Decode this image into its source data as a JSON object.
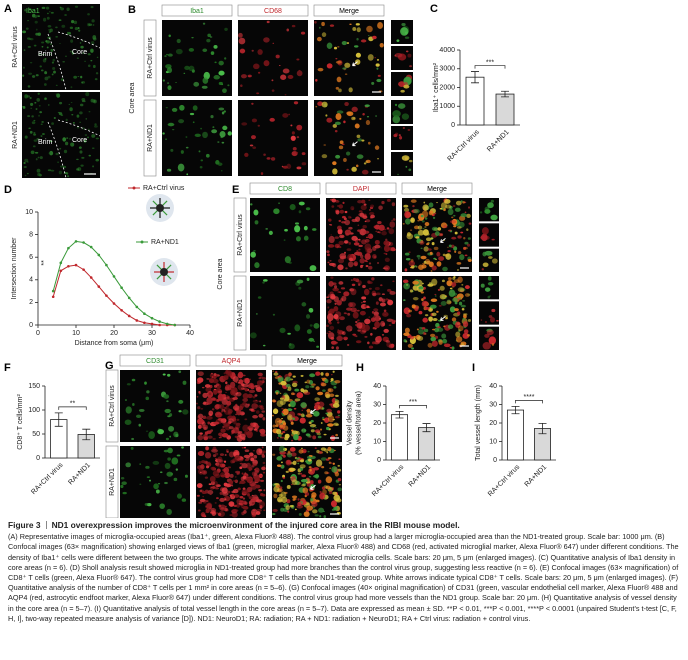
{
  "figure": {
    "panel_a": {
      "letter": "A",
      "stain": "Iba1",
      "rows": [
        "RA+Ctrl virus",
        "RA+ND1"
      ],
      "regions": [
        "Brim",
        "Core"
      ]
    },
    "panel_b": {
      "letter": "B",
      "columns": [
        "Iba1",
        "CD68",
        "Merge"
      ],
      "area": "Core area",
      "rows": [
        "RA+Ctrl virus",
        "RA+ND1"
      ]
    },
    "panel_e": {
      "letter": "E",
      "columns": [
        "CD8",
        "DAPI",
        "Merge"
      ],
      "area": "Core area",
      "rows": [
        "RA+Ctrl virus",
        "RA+ND1"
      ]
    },
    "panel_g": {
      "letter": "G",
      "columns": [
        "CD31",
        "AQP4",
        "Merge"
      ],
      "rows": [
        "RA+Ctrl virus",
        "RA+ND1"
      ]
    }
  },
  "chart_data": [
    {
      "type": "bar",
      "letter": "C",
      "categories": [
        "RA+Ctrl virus",
        "RA+ND1"
      ],
      "values": [
        2550,
        1650
      ],
      "errors": [
        300,
        150
      ],
      "colors": [
        "#ffffff",
        "#d9d9d9"
      ],
      "ylabel": [
        "Iba1⁺ cells/mm²"
      ],
      "ylim": [
        0,
        4000
      ],
      "yticks": [
        0,
        1000,
        2000,
        3000,
        4000
      ],
      "annotation": "***"
    },
    {
      "type": "line",
      "letter": "D",
      "xlabel": "Distance from soma (μm)",
      "ylabel": [
        "Intersection number"
      ],
      "x": [
        4,
        6,
        8,
        10,
        12,
        14,
        16,
        18,
        20,
        22,
        24,
        26,
        28,
        30,
        32,
        34,
        36
      ],
      "series": [
        {
          "name": "RA+Ctrl virus",
          "color": "#c0282d",
          "values": [
            2.5,
            4.8,
            5.2,
            5.3,
            4.9,
            4.2,
            3.4,
            2.6,
            1.9,
            1.3,
            0.8,
            0.4,
            0.2,
            0.1,
            0,
            0,
            0
          ]
        },
        {
          "name": "RA+ND1",
          "color": "#3a9a3a",
          "values": [
            3.0,
            5.5,
            6.8,
            7.4,
            7.3,
            6.9,
            6.2,
            5.3,
            4.3,
            3.3,
            2.4,
            1.6,
            1.0,
            0.6,
            0.3,
            0.1,
            0
          ]
        }
      ],
      "xlim": [
        0,
        40
      ],
      "xticks": [
        0,
        10,
        20,
        30,
        40
      ],
      "ylim": [
        0,
        10
      ],
      "yticks": [
        0,
        2,
        4,
        6,
        8,
        10
      ],
      "annotation": "**"
    },
    {
      "type": "bar",
      "letter": "F",
      "categories": [
        "RA+Ctrl virus",
        "RA+ND1"
      ],
      "values": [
        80,
        49
      ],
      "errors": [
        14,
        11
      ],
      "colors": [
        "#ffffff",
        "#d9d9d9"
      ],
      "ylabel": [
        "CD8⁺ T cells/mm²"
      ],
      "ylim": [
        0,
        150
      ],
      "yticks": [
        0,
        50,
        100,
        150
      ],
      "annotation": "**"
    },
    {
      "type": "bar",
      "letter": "H",
      "categories": [
        "RA+Ctrl virus",
        "RA+ND1"
      ],
      "values": [
        24.5,
        17.5
      ],
      "errors": [
        1.8,
        2.2
      ],
      "colors": [
        "#ffffff",
        "#d9d9d9"
      ],
      "ylabel": [
        "Vessel density",
        "(% vessel/total area)"
      ],
      "ylim": [
        0,
        40
      ],
      "yticks": [
        0,
        10,
        20,
        30,
        40
      ],
      "annotation": "***"
    },
    {
      "type": "bar",
      "letter": "I",
      "categories": [
        "RA+Ctrl virus",
        "RA+ND1"
      ],
      "values": [
        27,
        17
      ],
      "errors": [
        2,
        2.8
      ],
      "colors": [
        "#ffffff",
        "#d9d9d9"
      ],
      "ylabel": [
        "Total vessel length (mm)"
      ],
      "ylim": [
        0,
        40
      ],
      "yticks": [
        0,
        10,
        20,
        30,
        40
      ],
      "annotation": "****"
    }
  ],
  "caption": {
    "label": "Figure 3",
    "title": "ND1 overexpression improves the microenvironment of the injured core area in the RIBI mouse model.",
    "text": "(A) Representative images of microglia-occupied areas (Iba1⁺, green, Alexa Fluor® 488). The control virus group had a larger microglia-occupied area than the ND1-treated group. Scale bar: 1000 μm. (B) Confocal images (63× magnification) showing enlarged views of Iba1 (green, microglial marker, Alexa Fluor® 488) and CD68 (red, activated microglial marker, Alexa Fluor® 647) under different conditions. The density of Iba1⁺ cells were different between the two groups. The white arrows indicate typical activated microglia cells. Scale bars: 20 μm, 5 μm (enlarged images). (C) Quantitative analysis of Iba1 density in core areas (n = 6). (D) Sholl analysis result showed microglia in ND1-treated group had more branches than the control virus group, suggesting less reactive (n = 6). (E) Confocal images (63× magnification) of CD8⁺ T cells (green, Alexa Fluor® 647). The control virus group had more CD8⁺ T cells than the ND1-treated group. White arrows indicate typical CD8⁺ T cells. Scale bars: 20 μm, 5 μm (enlarged images). (F) Quantitative analysis of the number of CD8⁺ T cells per 1 mm² in core areas (n = 5–6). (G) Confocal images (40× original magnification) of CD31 (green, vascular endothelial cell marker, Alexa Fluor® 488 and AQP4 (red, astrocytic endfoot marker, Alexa Fluor® 647) under different conditions. The control virus group had more vessels than the ND1 group. Scale bar: 20 μm. (H) Quantitative analysis of vessel density in the core area (n = 5–7). (I) Quantitative analysis of total vessel length in the core areas (n = 5–7). Data are expressed as mean ± SD. **P < 0.01, ***P < 0.001, ****P < 0.0001 (unpaired Student's t-test [C, F, H, I], two-way repeated measure analysis of variance [D]). ND1: NeuroD1; RA: radiation; RA + ND1: radiation + NeuroD1; RA + Ctrl virus: radiation + control virus."
  }
}
